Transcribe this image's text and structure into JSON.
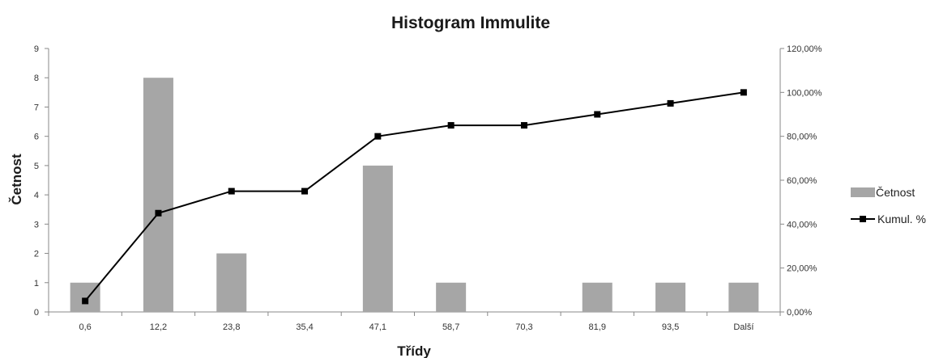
{
  "chart_data": {
    "type": "bar",
    "title": "Histogram Immulite",
    "xlabel": "Třídy",
    "ylabel": "Četnost",
    "categories": [
      "0,6",
      "12,2",
      "23,8",
      "35,4",
      "47,1",
      "58,7",
      "70,3",
      "81,9",
      "93,5",
      "Další"
    ],
    "ylim": [
      0,
      9
    ],
    "y_ticks": [
      "0",
      "1",
      "2",
      "3",
      "4",
      "5",
      "6",
      "7",
      "8",
      "9"
    ],
    "y2lim": [
      0,
      120
    ],
    "y2_ticks": [
      "0,00%",
      "20,00%",
      "40,00%",
      "60,00%",
      "80,00%",
      "100,00%",
      "120,00%"
    ],
    "series": [
      {
        "name": "Četnost",
        "type": "bar",
        "axis": "left",
        "color": "#a6a6a6",
        "values": [
          1,
          8,
          2,
          0,
          5,
          1,
          0,
          1,
          1,
          1
        ]
      },
      {
        "name": "Kumul. %",
        "type": "line",
        "axis": "right",
        "color": "#000000",
        "values": [
          5,
          45,
          55,
          55,
          80,
          85,
          85,
          90,
          95,
          100
        ]
      }
    ],
    "grid": false,
    "legend": "right"
  }
}
